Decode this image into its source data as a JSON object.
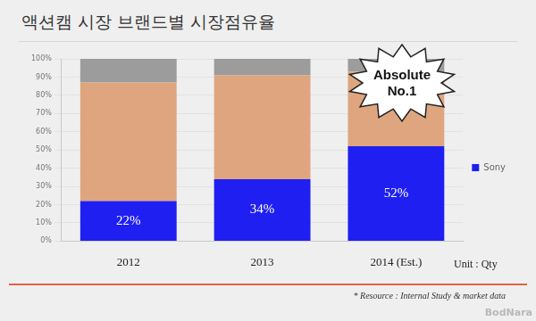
{
  "chart_data": {
    "type": "bar",
    "title": "액션캠 시장 브랜드별 시장점유율",
    "categories": [
      "2012",
      "2013",
      "2014 (Est.)"
    ],
    "stacked": true,
    "series": [
      {
        "name": "Sony",
        "color": "#1f1ff2",
        "values": [
          22,
          34,
          52
        ],
        "value_labels": [
          "22%",
          "34%",
          "52%"
        ],
        "data_labels": true
      },
      {
        "color": "#dfa57e",
        "values": [
          65,
          57,
          41
        ]
      },
      {
        "color": "#9c9c9c",
        "values": [
          13,
          9,
          7
        ]
      }
    ],
    "ylim": [
      0,
      100
    ],
    "yticks": [
      {
        "value": 0,
        "label": "0%"
      },
      {
        "value": 10,
        "label": "10%"
      },
      {
        "value": 20,
        "label": "20%"
      },
      {
        "value": 30,
        "label": "30%"
      },
      {
        "value": 40,
        "label": "40%"
      },
      {
        "value": 50,
        "label": "50%"
      },
      {
        "value": 60,
        "label": "60%"
      },
      {
        "value": 70,
        "label": "70%"
      },
      {
        "value": 80,
        "label": "80%"
      },
      {
        "value": 90,
        "label": "90%"
      },
      {
        "value": 100,
        "label": "100%"
      }
    ],
    "grid": true,
    "legend": "right",
    "annotation": "Absolute No.1",
    "unit_note": "Unit : Qty",
    "source": "* Resource : Internal Study & market data",
    "watermark": "BodNara"
  }
}
